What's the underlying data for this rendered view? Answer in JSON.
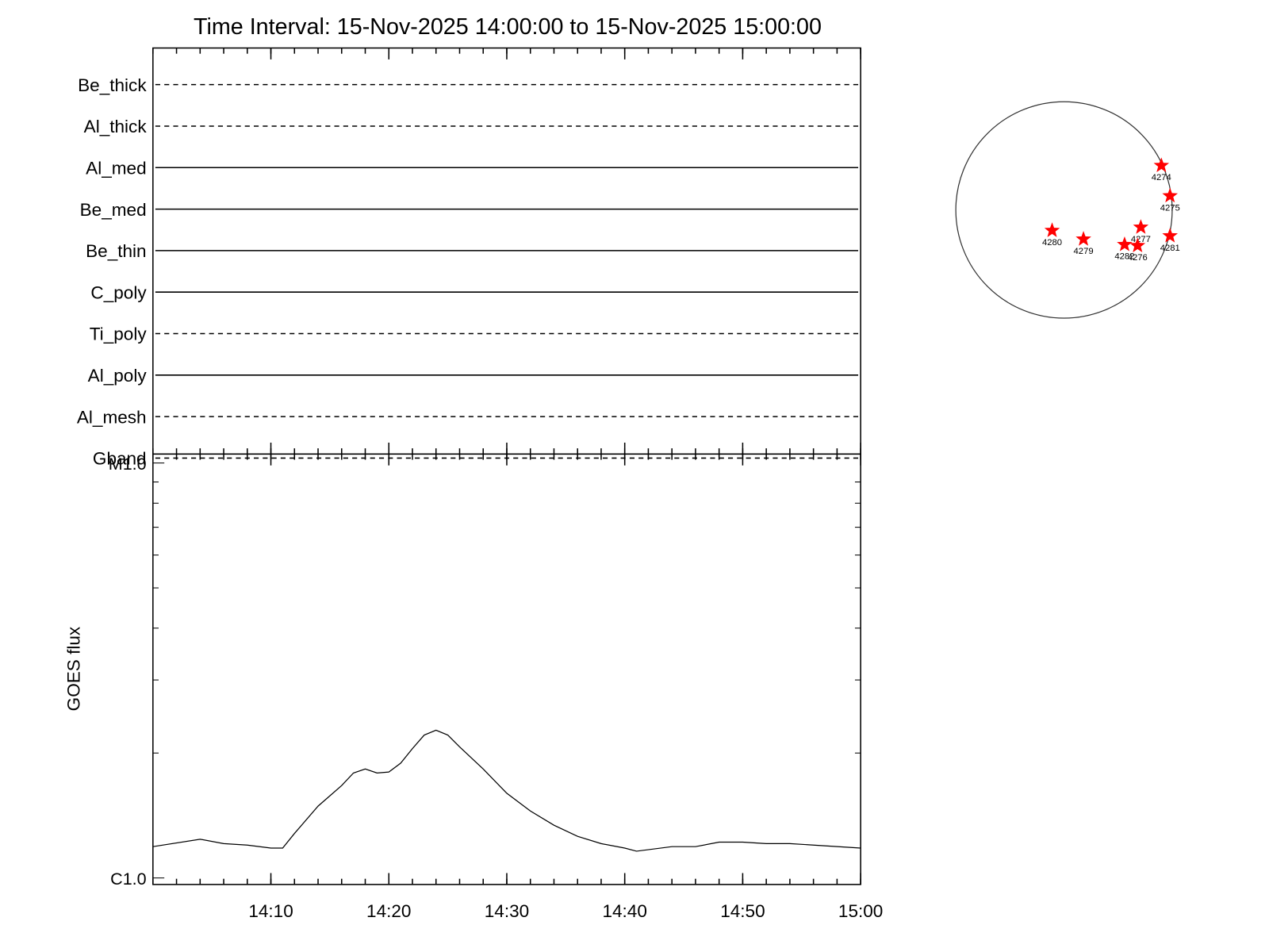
{
  "chart_data": [
    {
      "type": "timeline",
      "title": "Time Interval: 15-Nov-2025 14:00:00 to 15-Nov-2025 15:00:00",
      "categories": [
        "Be_thick",
        "Al_thick",
        "Al_med",
        "Be_med",
        "Be_thin",
        "C_poly",
        "Ti_poly",
        "Al_poly",
        "Al_mesh",
        "Gband"
      ],
      "styles": [
        "dashed",
        "dashed",
        "solid",
        "solid",
        "solid",
        "solid",
        "dashed",
        "solid",
        "dashed",
        "dashed"
      ],
      "color": "#000000"
    },
    {
      "type": "line",
      "ylabel": "GOES flux",
      "log": true,
      "color": "#000000",
      "xlim": [
        "14:00",
        "15:00"
      ],
      "xticks": [
        "14:10",
        "14:20",
        "14:30",
        "14:40",
        "14:50",
        "15:00"
      ],
      "ylim": [
        1e-06,
        1e-05
      ],
      "yticks": [
        {
          "value": 1e-06,
          "label": "C1.0"
        },
        {
          "value": 1e-05,
          "label": "M1.0"
        }
      ],
      "x": [
        "14:00",
        "14:04",
        "14:06",
        "14:08",
        "14:10",
        "14:11",
        "14:12",
        "14:14",
        "14:16",
        "14:17",
        "14:18",
        "14:19",
        "14:20",
        "14:21",
        "14:22",
        "14:23",
        "14:24",
        "14:25",
        "14:26",
        "14:28",
        "14:30",
        "14:32",
        "14:34",
        "14:36",
        "14:38",
        "14:40",
        "14:41",
        "14:44",
        "14:46",
        "14:48",
        "14:50",
        "14:52",
        "14:54",
        "14:56",
        "15:00"
      ],
      "values": [
        1.19e-06,
        1.24e-06,
        1.21e-06,
        1.2e-06,
        1.18e-06,
        1.18e-06,
        1.28e-06,
        1.49e-06,
        1.67e-06,
        1.79e-06,
        1.83e-06,
        1.79e-06,
        1.8e-06,
        1.89e-06,
        2.05e-06,
        2.21e-06,
        2.27e-06,
        2.21e-06,
        2.07e-06,
        1.83e-06,
        1.6e-06,
        1.45e-06,
        1.34e-06,
        1.26e-06,
        1.21e-06,
        1.18e-06,
        1.16e-06,
        1.19e-06,
        1.19e-06,
        1.22e-06,
        1.22e-06,
        1.21e-06,
        1.21e-06,
        1.2e-06,
        1.18e-06
      ]
    },
    {
      "type": "disk",
      "color": "#ff0000",
      "regions": [
        {
          "name": "4274",
          "x": 0.9,
          "y": 0.41
        },
        {
          "name": "4275",
          "x": 0.98,
          "y": 0.13
        },
        {
          "name": "4277",
          "x": 0.71,
          "y": -0.16
        },
        {
          "name": "4281",
          "x": 0.98,
          "y": -0.24
        },
        {
          "name": "4280",
          "x": -0.11,
          "y": -0.19
        },
        {
          "name": "4279",
          "x": 0.18,
          "y": -0.27
        },
        {
          "name": "4282",
          "x": 0.56,
          "y": -0.32
        },
        {
          "name": "4276",
          "x": 0.68,
          "y": -0.33
        }
      ]
    }
  ]
}
